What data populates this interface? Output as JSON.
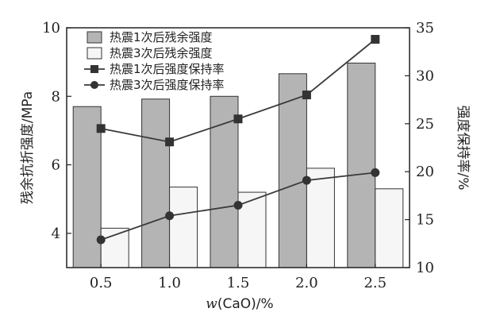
{
  "chart_data": {
    "type": "bar+line",
    "x_axis": {
      "label_prefix": "w",
      "label_rest": "(CaO)/%",
      "ticks": [
        "0.5",
        "1.0",
        "1.5",
        "2.0",
        "2.5"
      ]
    },
    "y_left": {
      "label": "残余抗折强度/MPa",
      "range": [
        3,
        10
      ],
      "ticks": [
        "4",
        "6",
        "8",
        "10"
      ]
    },
    "y_right": {
      "label": "强度保持率/%",
      "range": [
        10,
        35
      ],
      "ticks": [
        "10",
        "15",
        "20",
        "25",
        "30",
        "35"
      ]
    },
    "series": [
      {
        "name": "热震1次后残余强度",
        "kind": "bar",
        "axis": "left",
        "color": "#b4b4b4",
        "values": [
          7.7,
          7.92,
          8.0,
          8.66,
          8.97
        ]
      },
      {
        "name": "热震3次后残余强度",
        "kind": "bar",
        "axis": "left",
        "color": "#f6f6f6",
        "values": [
          4.15,
          5.35,
          5.2,
          5.9,
          5.3
        ]
      },
      {
        "name": "热震1次后强度保持率",
        "kind": "line",
        "marker": "square",
        "axis": "right",
        "color": "#3a3a3a",
        "values": [
          24.5,
          23.1,
          25.5,
          28.0,
          33.8
        ]
      },
      {
        "name": "热震3次后强度保持率",
        "kind": "line",
        "marker": "circle",
        "axis": "right",
        "color": "#3a3a3a",
        "values": [
          12.9,
          15.4,
          16.5,
          19.1,
          19.9
        ]
      }
    ],
    "grid": false,
    "legend_position": "top-left"
  }
}
